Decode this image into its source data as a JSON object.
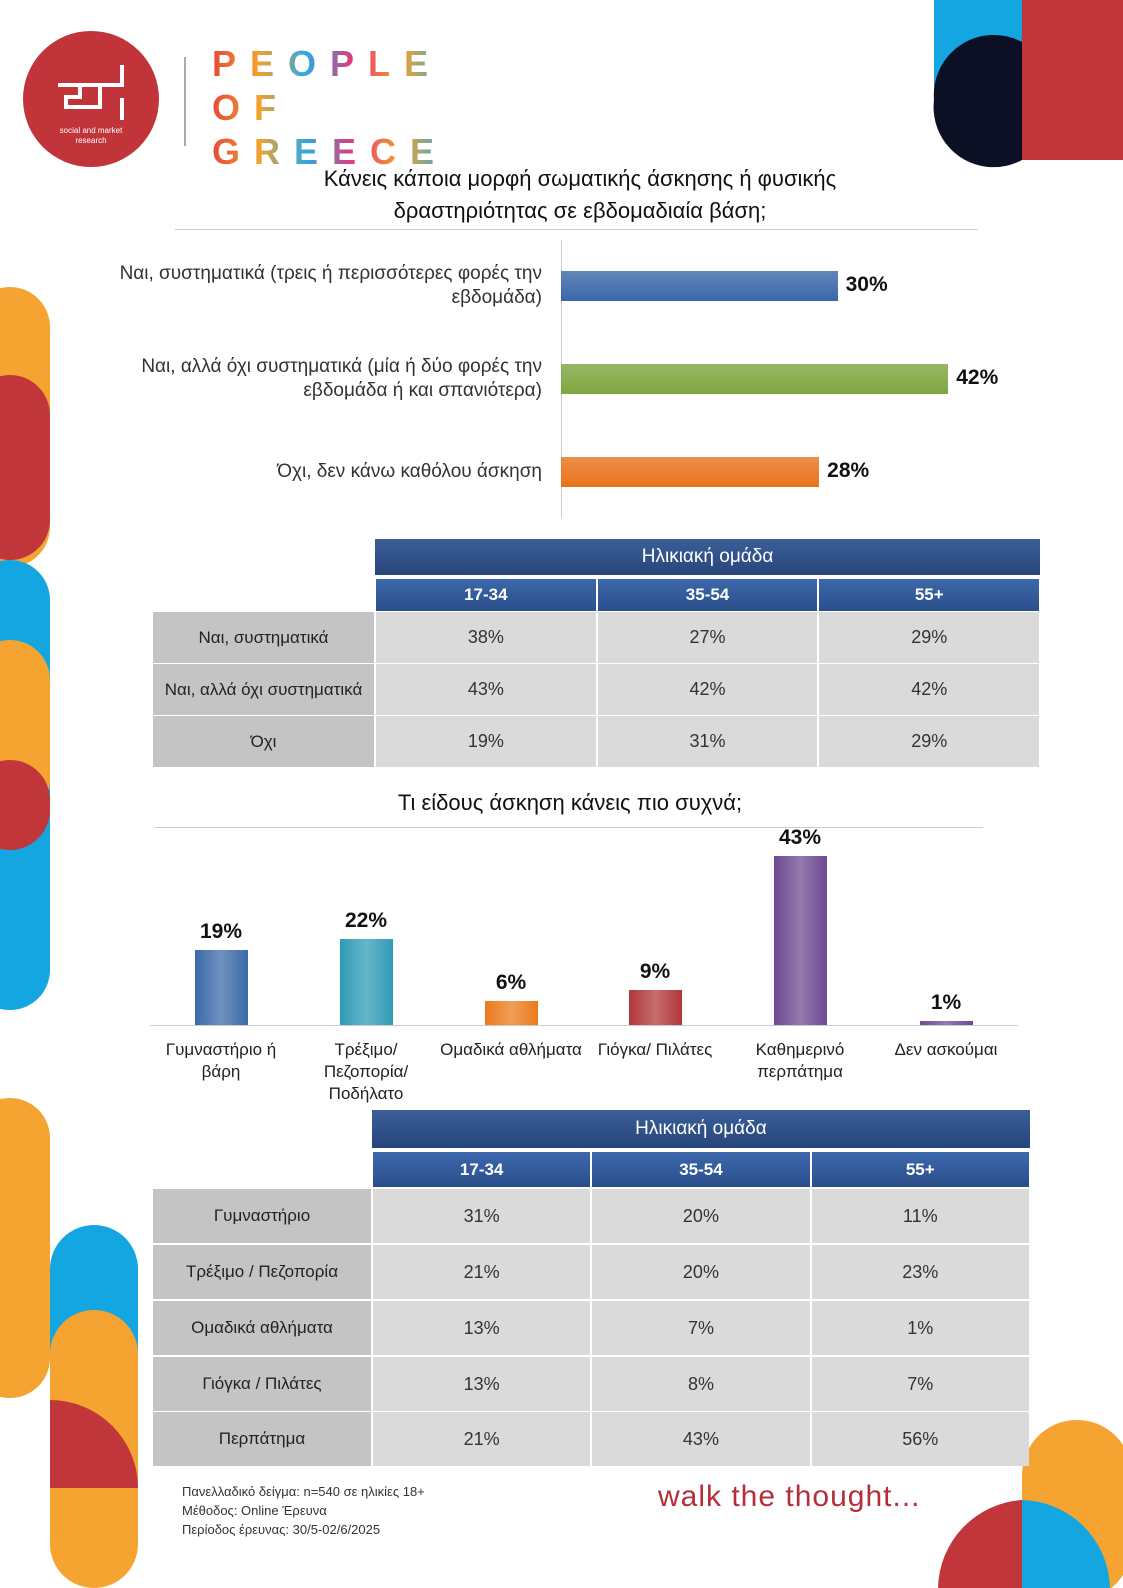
{
  "logo": {
    "company": "social and market research",
    "brand_lines": [
      "PEOPLE",
      "OF",
      "GREECE"
    ]
  },
  "chart_data": [
    {
      "type": "hbar",
      "title": "Κάνεις κάποια μορφή σωματικής άσκησης ή φυσικής δραστηριότητας σε εβδομαδιαία βάση;",
      "categories": [
        "Ναι, συστηματικά (τρεις ή περισσότερες φορές την εβδομάδα)",
        "Ναι, αλλά όχι συστηματικά (μία ή δύο φορές την εβδομάδα ή και σπανιότερα)",
        "Όχι, δεν κάνω καθόλου άσκηση"
      ],
      "values": [
        30,
        42,
        28
      ],
      "value_labels": [
        "30%",
        "42%",
        "28%"
      ],
      "colors": [
        "#3b67a9",
        "#7fa640",
        "#e8731c"
      ]
    },
    {
      "type": "bar",
      "title": "Τι είδους άσκηση κάνεις πιο συχνά;",
      "categories": [
        "Γυμναστήριο ή βάρη",
        "Τρέξιμο/ Πεζοπορία/ Ποδήλατο",
        "Ομαδικά αθλήματα",
        "Γιόγκα/ Πιλάτες",
        "Καθημερινό περπάτημα",
        "Δεν ασκούμαι"
      ],
      "values": [
        19,
        22,
        6,
        9,
        43,
        1
      ],
      "value_labels": [
        "19%",
        "22%",
        "6%",
        "9%",
        "43%",
        "1%"
      ],
      "colors": [
        "#3b69a8",
        "#2f9bb6",
        "#ea7a1c",
        "#b0373a",
        "#6d4a92",
        "#6d4a92"
      ]
    }
  ],
  "tables": [
    {
      "group": "Ηλικιακή ομάδα",
      "columns": [
        "17-34",
        "35-54",
        "55+"
      ],
      "rows": [
        [
          "Ναι, συστηματικά",
          "38%",
          "27%",
          "29%"
        ],
        [
          "Ναι, αλλά όχι συστηματικά",
          "43%",
          "42%",
          "42%"
        ],
        [
          "Όχι",
          "19%",
          "31%",
          "29%"
        ]
      ]
    },
    {
      "group": "Ηλικιακή ομάδα",
      "columns": [
        "17-34",
        "35-54",
        "55+"
      ],
      "rows": [
        [
          "Γυμναστήριο",
          "31%",
          "20%",
          "11%"
        ],
        [
          "Τρέξιμο / Πεζοπορία",
          "21%",
          "20%",
          "23%"
        ],
        [
          "Ομαδικά αθλήματα",
          "13%",
          "7%",
          "1%"
        ],
        [
          "Γιόγκα / Πιλάτες",
          "13%",
          "8%",
          "7%"
        ],
        [
          "Περπάτημα",
          "21%",
          "43%",
          "56%"
        ]
      ]
    }
  ],
  "footer": {
    "notes": [
      "Πανελλαδικό δείγμα: n=540 σε ηλικίες 18+",
      "Μέθοδος: Online Έρευνα",
      "Περίοδος έρευνας: 30/5-02/6/2025"
    ],
    "slogan": "walk the thought..."
  }
}
